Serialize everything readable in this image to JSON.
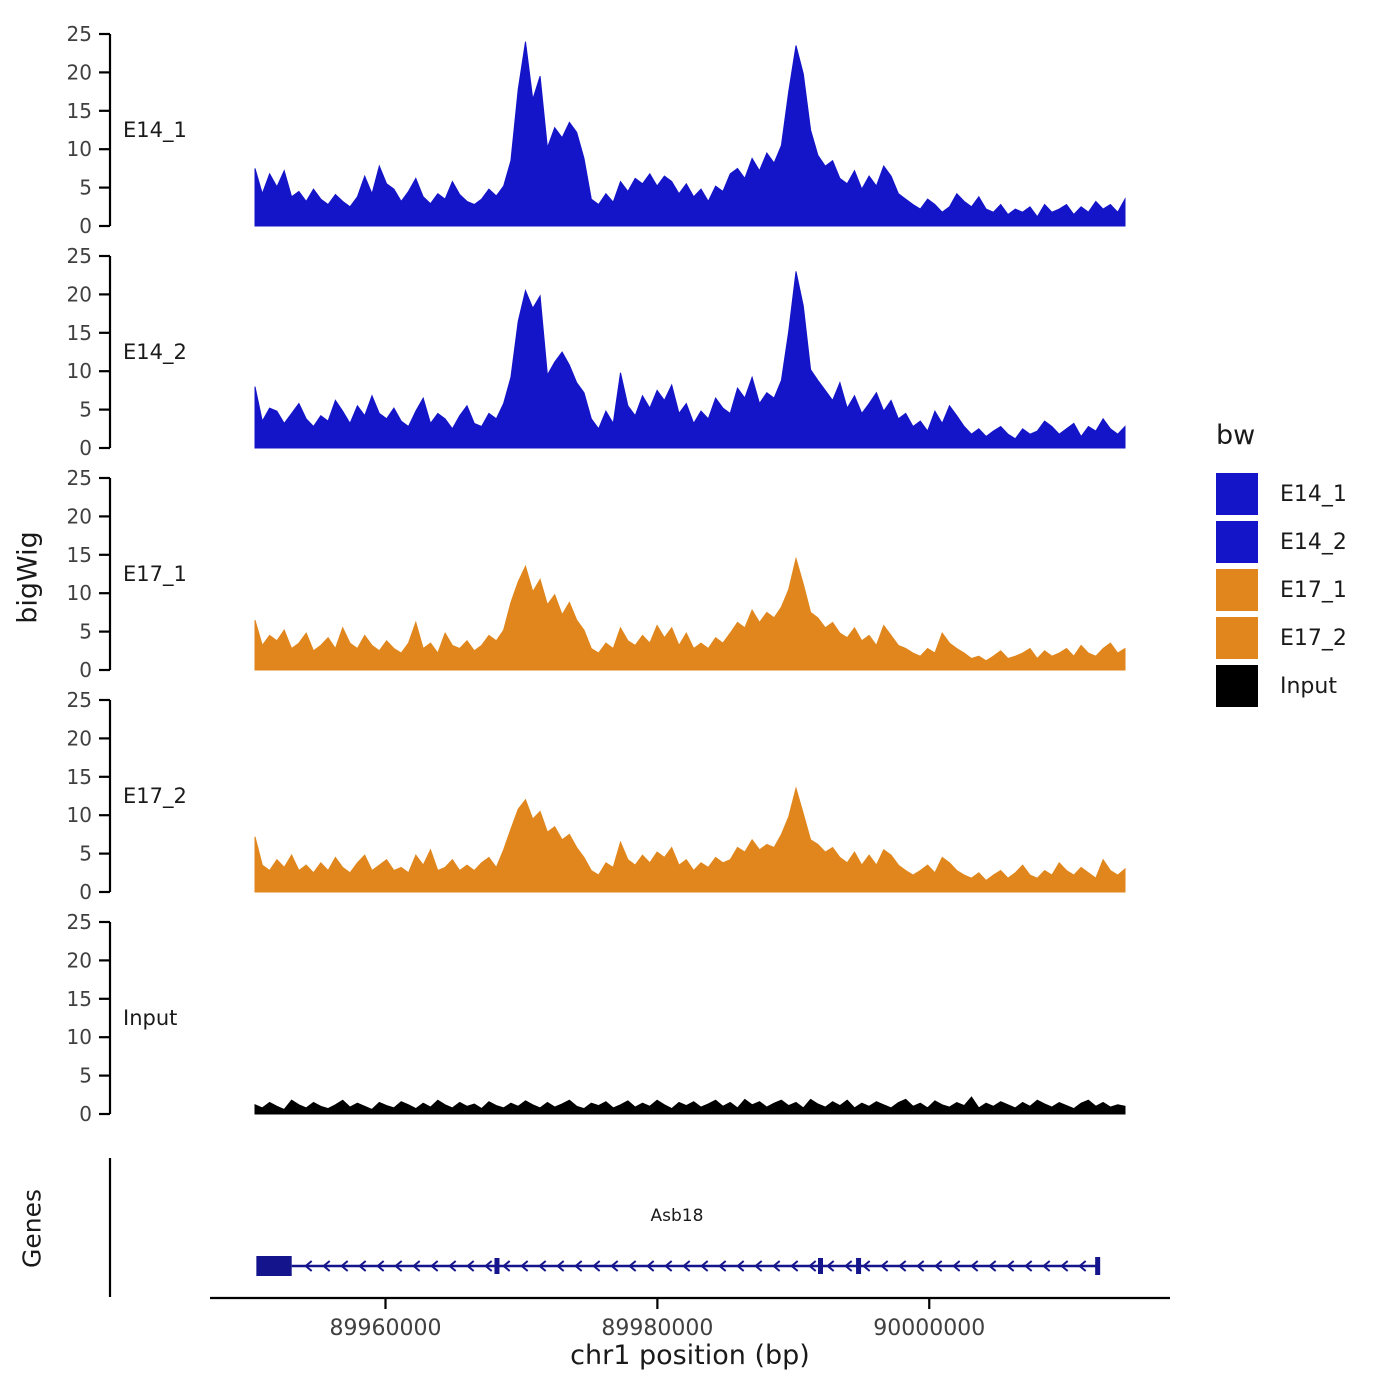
{
  "figure": {
    "background": "#ffffff",
    "colors": {
      "blue": "#1414C8",
      "orange": "#E0861C",
      "black": "#000000",
      "gene": "#14148C",
      "axis": "#000000",
      "tick_text": "#404040",
      "label_text": "#1a1a1a"
    }
  },
  "axes": {
    "y_title": "bigWig",
    "x_title": "chr1 position (bp)",
    "x_ticks": [
      89960000,
      89980000,
      90000000
    ],
    "x_tick_labels": [
      "89960000",
      "89980000",
      "90000000"
    ],
    "y_ticks": [
      0,
      5,
      10,
      15,
      20,
      25
    ]
  },
  "legend": {
    "title": "bw",
    "items": [
      {
        "label": "E14_1",
        "color": "#1414C8"
      },
      {
        "label": "E14_2",
        "color": "#1414C8"
      },
      {
        "label": "E17_1",
        "color": "#E0861C"
      },
      {
        "label": "E17_2",
        "color": "#E0861C"
      },
      {
        "label": "Input",
        "color": "#000000"
      }
    ]
  },
  "genes": {
    "title": "Genes",
    "gene_label": "Asb18",
    "gene": {
      "name": "Asb18",
      "strand": "-",
      "start": 89950500,
      "end": 90012500,
      "utr_box_end": 89953100,
      "exon_ticks": [
        89968200,
        89992000,
        89994800
      ],
      "color": "#14148C"
    }
  },
  "chart_data": {
    "type": "area",
    "title": "",
    "ylabel": "bigWig",
    "xlabel": "chr1 position (bp)",
    "xlim": [
      89950400,
      90014400
    ],
    "ylim": [
      0,
      25
    ],
    "y_ticks": [
      0,
      5,
      10,
      15,
      20,
      25
    ],
    "x_ticks": [
      89960000,
      89980000,
      90000000
    ],
    "legend_title": "bw",
    "n_points_per_track": 120,
    "tracks": [
      {
        "name": "E14_1",
        "color": "#1414C8",
        "values": [
          7.5,
          4.2,
          6.8,
          5.1,
          7.2,
          3.8,
          4.5,
          3.2,
          4.8,
          3.5,
          2.8,
          4.1,
          3.2,
          2.5,
          3.8,
          6.5,
          4.2,
          7.8,
          5.5,
          4.8,
          3.2,
          4.5,
          6.2,
          3.8,
          2.9,
          4.2,
          3.5,
          5.8,
          4.1,
          3.2,
          2.8,
          3.5,
          4.8,
          3.9,
          5.2,
          8.5,
          17.8,
          24.0,
          16.5,
          19.5,
          10.2,
          12.8,
          11.5,
          13.5,
          12.2,
          8.8,
          3.5,
          2.8,
          4.2,
          3.1,
          5.8,
          4.5,
          6.2,
          5.5,
          6.8,
          5.2,
          6.5,
          5.8,
          4.2,
          5.5,
          3.8,
          4.8,
          3.2,
          5.2,
          4.5,
          6.8,
          7.5,
          6.2,
          8.8,
          7.2,
          9.5,
          8.2,
          10.5,
          17.5,
          23.5,
          19.8,
          12.5,
          9.2,
          7.8,
          8.5,
          6.2,
          5.5,
          7.2,
          4.8,
          6.5,
          5.2,
          7.8,
          6.5,
          4.2,
          3.5,
          2.8,
          2.2,
          3.5,
          2.8,
          1.8,
          2.5,
          4.2,
          3.2,
          2.5,
          3.8,
          2.2,
          1.8,
          2.8,
          1.5,
          2.2,
          1.8,
          2.5,
          1.2,
          2.8,
          1.8,
          2.2,
          2.8,
          1.5,
          2.5,
          1.8,
          3.2,
          2.2,
          2.8,
          1.8,
          3.5
        ]
      },
      {
        "name": "E14_2",
        "color": "#1414C8",
        "values": [
          8.0,
          3.5,
          5.2,
          4.8,
          3.2,
          4.5,
          5.8,
          3.8,
          2.8,
          4.2,
          3.5,
          6.2,
          4.8,
          3.2,
          5.5,
          4.2,
          6.8,
          4.5,
          3.8,
          5.2,
          3.5,
          2.8,
          4.8,
          6.5,
          3.2,
          4.5,
          3.8,
          2.5,
          4.2,
          5.5,
          3.2,
          2.8,
          4.5,
          3.8,
          5.8,
          9.2,
          16.5,
          20.5,
          18.2,
          19.8,
          9.5,
          11.2,
          12.5,
          10.8,
          8.5,
          7.2,
          3.8,
          2.5,
          4.8,
          3.2,
          9.8,
          5.5,
          4.2,
          6.8,
          5.2,
          7.5,
          6.2,
          8.2,
          4.5,
          5.8,
          3.2,
          4.8,
          3.8,
          6.5,
          5.2,
          4.5,
          7.8,
          6.5,
          9.2,
          5.8,
          7.2,
          6.5,
          8.8,
          15.2,
          23.0,
          18.5,
          10.2,
          8.8,
          7.5,
          6.2,
          8.5,
          5.2,
          6.8,
          4.5,
          5.8,
          7.2,
          4.8,
          6.2,
          3.8,
          4.5,
          2.8,
          3.5,
          2.2,
          4.8,
          3.2,
          5.5,
          4.2,
          2.8,
          1.8,
          2.5,
          1.5,
          2.2,
          2.8,
          1.8,
          1.2,
          2.5,
          1.8,
          2.2,
          3.5,
          2.8,
          1.8,
          2.5,
          3.2,
          1.5,
          2.8,
          2.2,
          3.8,
          2.5,
          1.8,
          2.8
        ]
      },
      {
        "name": "E17_1",
        "color": "#E0861C",
        "values": [
          6.5,
          3.2,
          4.5,
          3.8,
          5.2,
          2.8,
          3.5,
          4.8,
          2.5,
          3.2,
          4.2,
          2.8,
          5.5,
          3.5,
          2.8,
          4.5,
          3.2,
          2.5,
          3.8,
          2.8,
          2.2,
          3.5,
          6.2,
          2.8,
          3.5,
          2.2,
          4.8,
          3.2,
          2.8,
          3.8,
          2.5,
          3.2,
          4.5,
          3.8,
          5.2,
          8.8,
          11.5,
          13.5,
          10.2,
          11.8,
          8.5,
          9.8,
          7.2,
          8.8,
          6.5,
          5.2,
          2.8,
          2.2,
          3.5,
          2.8,
          5.5,
          3.8,
          3.2,
          4.5,
          3.5,
          5.8,
          4.2,
          5.5,
          3.2,
          4.8,
          2.8,
          3.5,
          2.8,
          4.2,
          3.5,
          4.8,
          6.2,
          5.5,
          7.8,
          6.2,
          7.5,
          6.8,
          8.2,
          10.5,
          14.5,
          11.2,
          7.5,
          6.8,
          5.5,
          6.2,
          4.8,
          4.2,
          5.5,
          3.8,
          4.5,
          3.2,
          5.8,
          4.5,
          3.2,
          2.8,
          2.2,
          1.8,
          2.8,
          2.2,
          4.8,
          3.5,
          2.8,
          2.2,
          1.5,
          1.8,
          1.2,
          1.8,
          2.5,
          1.5,
          1.8,
          2.2,
          2.8,
          1.5,
          2.5,
          1.8,
          2.2,
          2.8,
          1.8,
          3.2,
          2.2,
          1.8,
          2.8,
          3.5,
          2.2,
          2.8
        ]
      },
      {
        "name": "E17_2",
        "color": "#E0861C",
        "values": [
          7.2,
          3.5,
          2.8,
          4.2,
          3.2,
          4.8,
          2.8,
          3.5,
          2.5,
          3.8,
          2.8,
          4.5,
          3.2,
          2.5,
          3.8,
          4.8,
          2.8,
          3.5,
          4.2,
          2.8,
          3.2,
          2.5,
          4.8,
          3.5,
          5.5,
          2.8,
          3.2,
          4.2,
          2.8,
          3.5,
          2.8,
          3.8,
          4.5,
          3.2,
          5.5,
          8.2,
          10.8,
          12.0,
          9.5,
          10.5,
          7.8,
          8.5,
          6.8,
          7.5,
          5.8,
          4.5,
          2.8,
          2.2,
          3.8,
          3.2,
          6.5,
          4.2,
          3.5,
          4.8,
          3.8,
          5.2,
          4.5,
          5.8,
          3.5,
          4.2,
          2.8,
          3.8,
          3.2,
          4.5,
          3.8,
          4.2,
          5.8,
          5.2,
          6.8,
          5.5,
          6.2,
          5.8,
          7.5,
          9.8,
          13.5,
          10.2,
          6.8,
          6.2,
          5.2,
          5.8,
          4.5,
          3.8,
          5.2,
          3.5,
          4.8,
          3.5,
          5.5,
          4.8,
          3.5,
          2.8,
          2.2,
          2.8,
          3.5,
          2.5,
          4.5,
          3.8,
          2.8,
          2.2,
          1.8,
          2.5,
          1.5,
          2.2,
          2.8,
          1.8,
          2.5,
          3.5,
          2.2,
          1.8,
          2.8,
          2.2,
          3.8,
          2.8,
          2.2,
          3.2,
          2.5,
          1.8,
          4.2,
          2.8,
          2.2,
          3.0
        ]
      },
      {
        "name": "Input",
        "color": "#000000",
        "values": [
          1.2,
          0.8,
          1.5,
          1.0,
          0.6,
          1.8,
          1.2,
          0.8,
          1.5,
          1.0,
          0.7,
          1.2,
          1.8,
          0.9,
          1.4,
          1.0,
          0.6,
          1.5,
          1.1,
          0.8,
          1.6,
          1.2,
          0.7,
          1.4,
          0.9,
          1.8,
          1.2,
          0.8,
          1.5,
          1.0,
          1.3,
          0.7,
          1.6,
          1.1,
          0.8,
          1.4,
          1.0,
          1.7,
          1.2,
          0.8,
          1.5,
          0.9,
          1.3,
          1.8,
          1.0,
          0.7,
          1.4,
          1.1,
          1.6,
          0.8,
          1.2,
          1.7,
          0.9,
          1.4,
          1.0,
          1.8,
          1.2,
          0.7,
          1.5,
          1.1,
          1.6,
          0.9,
          1.3,
          1.8,
          1.0,
          1.5,
          0.8,
          1.9,
          1.2,
          1.6,
          0.9,
          1.4,
          1.8,
          1.1,
          1.5,
          0.8,
          1.9,
          1.3,
          0.9,
          1.6,
          1.1,
          1.8,
          0.8,
          1.4,
          1.0,
          1.6,
          1.2,
          0.8,
          1.5,
          1.9,
          1.0,
          1.4,
          0.8,
          1.7,
          1.2,
          0.9,
          1.5,
          1.1,
          2.2,
          0.8,
          1.4,
          1.0,
          1.6,
          1.2,
          0.8,
          1.5,
          1.0,
          1.8,
          1.3,
          0.9,
          1.5,
          1.1,
          0.7,
          1.4,
          1.8,
          1.0,
          1.5,
          0.9,
          1.2,
          1.0
        ]
      }
    ]
  }
}
